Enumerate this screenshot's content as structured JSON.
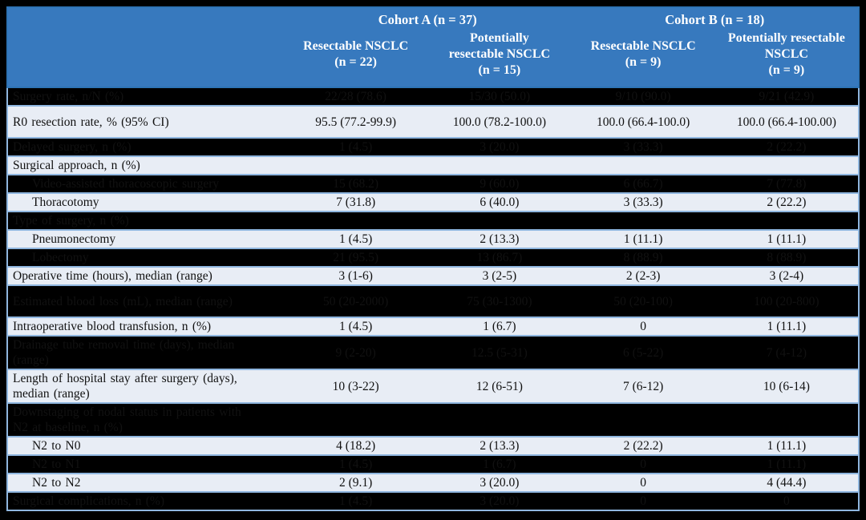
{
  "table": {
    "header": {
      "cohort_a": "Cohort A (n = 37)",
      "cohort_b": "Cohort B (n = 18)",
      "columns": [
        "Resectable NSCLC\n(n = 22)",
        "Potentially\nresectable NSCLC\n(n = 15)",
        "Resectable NSCLC\n(n = 9)",
        "Potentially resectable\nNSCLC\n(n = 9)"
      ]
    },
    "rows": [
      {
        "label": "Surgery rate, n/N (%)",
        "indent": false,
        "tall": false,
        "values": [
          "22/28 (78.6)",
          "15/30 (50.0)",
          "9/10 (90.0)",
          "9/21 (42.9)"
        ]
      },
      {
        "label": "R0 resection rate, % (95% CI)",
        "indent": false,
        "tall": true,
        "values": [
          "95.5 (77.2-99.9)",
          "100.0 (78.2-100.0)",
          "100.0 (66.4-100.0)",
          "100.0 (66.4-100.00)"
        ]
      },
      {
        "label": "Delayed surgery, n (%)",
        "indent": false,
        "tall": false,
        "values": [
          "1 (4.5)",
          "3 (20.0)",
          "3 (33.3)",
          "2 (22.2)"
        ]
      },
      {
        "label": "Surgical approach, n (%)",
        "indent": false,
        "tall": false,
        "values": [
          "",
          "",
          "",
          ""
        ]
      },
      {
        "label": "Video-assisted thoracoscopic surgery",
        "indent": true,
        "tall": false,
        "values": [
          "15 (68.2)",
          "9 (60.0)",
          "6 (66.7)",
          "7 (77.8)"
        ]
      },
      {
        "label": "Thoracotomy",
        "indent": true,
        "tall": false,
        "values": [
          "7 (31.8)",
          "6 (40.0)",
          "3 (33.3)",
          "2 (22.2)"
        ]
      },
      {
        "label": "Type of surgery, n (%)",
        "indent": false,
        "tall": false,
        "values": [
          "",
          "",
          "",
          ""
        ]
      },
      {
        "label": "Pneumonectomy",
        "indent": true,
        "tall": false,
        "values": [
          "1 (4.5)",
          "2 (13.3)",
          "1 (11.1)",
          "1 (11.1)"
        ]
      },
      {
        "label": "Lobectomy",
        "indent": true,
        "tall": false,
        "values": [
          "21 (95.5)",
          "13 (86.7)",
          "8 (88.9)",
          "8 (88.9)"
        ]
      },
      {
        "label": "Operative time (hours), median (range)",
        "indent": false,
        "tall": false,
        "values": [
          "3 (1-6)",
          "3 (2-5)",
          "2 (2-3)",
          "3 (2-4)"
        ]
      },
      {
        "label": "Estimated blood loss (mL), median (range)",
        "indent": false,
        "tall": true,
        "values": [
          "50 (20-2000)",
          "75 (30-1300)",
          "50 (20-100)",
          "100 (20-800)"
        ]
      },
      {
        "label": "Intraoperative blood transfusion, n (%)",
        "indent": false,
        "tall": false,
        "values": [
          "1 (4.5)",
          "1 (6.7)",
          "0",
          "1 (11.1)"
        ]
      },
      {
        "label": "Drainage tube removal time (days), median\n(range)",
        "indent": false,
        "tall": false,
        "values": [
          "9 (2-20)",
          "12.5 (5-31)",
          "6 (5-22)",
          "7 (4-12)"
        ]
      },
      {
        "label": "Length of hospital stay after surgery (days),\nmedian (range)",
        "indent": false,
        "tall": false,
        "values": [
          "10 (3-22)",
          "12 (6-51)",
          "7 (6-12)",
          "10 (6-14)"
        ]
      },
      {
        "label": "Downstaging of nodal status in patients with\nN2 at baseline, n (%)",
        "indent": false,
        "tall": false,
        "values": [
          "",
          "",
          "",
          ""
        ]
      },
      {
        "label": "N2 to N0",
        "indent": true,
        "tall": false,
        "values": [
          "4 (18.2)",
          "2 (13.3)",
          "2 (22.2)",
          "1 (11.1)"
        ]
      },
      {
        "label": "N2 to N1",
        "indent": true,
        "tall": false,
        "values": [
          "1 (4.5)",
          "1 (6.7)",
          "0",
          "1 (11.1)"
        ]
      },
      {
        "label": "N2 to N2",
        "indent": true,
        "tall": false,
        "values": [
          "2 (9.1)",
          "3 (20.0)",
          "0",
          "4 (44.4)"
        ]
      },
      {
        "label": "Surgical complications, n (%)",
        "indent": false,
        "tall": false,
        "values": [
          "1 (4.5)",
          "3 (20.0)",
          "0",
          "0"
        ]
      }
    ]
  },
  "colors": {
    "header_bg": "#3779BE",
    "header_border": "#2E74B5",
    "header_text": "#FFFFFF",
    "row_border": "#8FB6DF",
    "row_alt_bg": "#E8EDF5",
    "frame_bg": "#000000",
    "body_text": "#111111"
  }
}
